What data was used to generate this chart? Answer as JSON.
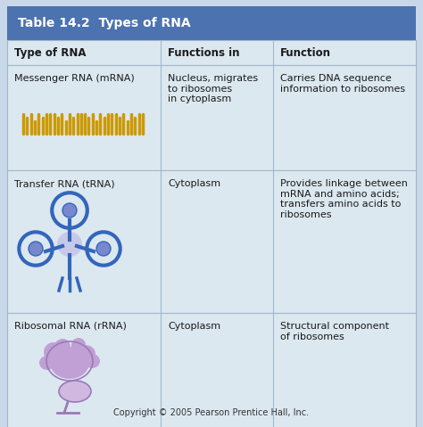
{
  "title": "Table 14.2  Types of RNA",
  "title_bg": "#4d72b0",
  "title_color": "#ffffff",
  "cell_bg": "#dce8f0",
  "border_color": "#a0b8cc",
  "outer_bg": "#c8d8e8",
  "col_headers": [
    "Type of RNA",
    "Functions in",
    "Function"
  ],
  "rows": [
    {
      "type": "Messenger RNA (mRNA)",
      "functions_in": "Nucleus, migrates\nto ribosomes\nin cytoplasm",
      "function": "Carries DNA sequence\ninformation to ribosomes",
      "icon": "mrna"
    },
    {
      "type": "Transfer RNA (tRNA)",
      "functions_in": "Cytoplasm",
      "function": "Provides linkage between\nmRNA and amino acids;\ntransfers amino acids to\nribosomes",
      "icon": "trna"
    },
    {
      "type": "Ribosomal RNA (rRNA)",
      "functions_in": "Cytoplasm",
      "function": "Structural component\nof ribosomes",
      "icon": "rrna"
    }
  ],
  "copyright": "Copyright © 2005 Pearson Prentice Hall, Inc.",
  "font_size_title": 10,
  "font_size_header": 8.5,
  "font_size_cell": 8,
  "font_size_copyright": 7
}
